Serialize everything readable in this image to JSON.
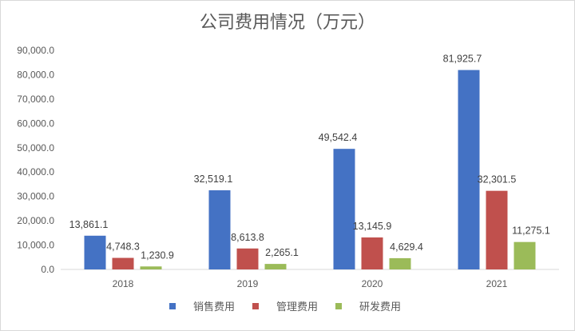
{
  "chart_data": {
    "type": "bar",
    "title": "公司费用情况（万元）",
    "categories": [
      "2018",
      "2019",
      "2020",
      "2021"
    ],
    "series": [
      {
        "name": "销售费用",
        "color": "#4472C4",
        "values": [
          13861.1,
          32519.1,
          49542.4,
          81925.7
        ],
        "labels": [
          "13,861.1",
          "32,519.1",
          "49,542.4",
          "81,925.7"
        ]
      },
      {
        "name": "管理费用",
        "color": "#C0504D",
        "values": [
          4748.3,
          8613.8,
          13145.9,
          32301.5
        ],
        "labels": [
          "4,748.3",
          "8,613.8",
          "13,145.9",
          "32,301.5"
        ]
      },
      {
        "name": "研发费用",
        "color": "#9BBB59",
        "values": [
          1230.9,
          2265.1,
          4629.4,
          11275.1
        ],
        "labels": [
          "1,230.9",
          "2,265.1",
          "4,629.4",
          "11,275.1"
        ]
      }
    ],
    "ylim": [
      0,
      90000
    ],
    "yticks": [
      0,
      10000,
      20000,
      30000,
      40000,
      50000,
      60000,
      70000,
      80000,
      90000
    ],
    "ytick_labels": [
      "0.0",
      "10,000.0",
      "20,000.0",
      "30,000.0",
      "40,000.0",
      "50,000.0",
      "60,000.0",
      "70,000.0",
      "80,000.0",
      "90,000.0"
    ],
    "grid": false,
    "legend_position": "bottom",
    "xlabel": "",
    "ylabel": ""
  }
}
